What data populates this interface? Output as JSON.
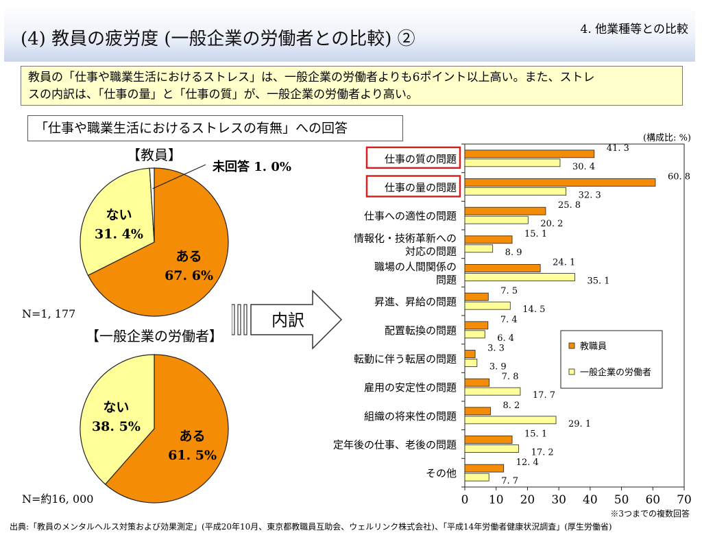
{
  "header": {
    "title": "(4) 教員の疲労度 (一般企業の労働者との比較) ②",
    "section": "4. 他業種等との比較"
  },
  "summary": {
    "line1": "教員の「仕事や職業生活におけるストレス」は、一般企業の労働者よりも6ポイント以上高い。また、ストレ",
    "line2": "スの内訳は、「仕事の量」と「仕事の質」が、一般企業の労働者より高い。"
  },
  "question_label": "「仕事や職業生活におけるストレスの有無」への回答",
  "unit_label": "(構成比: %)",
  "arrow_label": "内訳",
  "footnote": "※3つまでの複数回答",
  "source": "出典:「教員のメンタルヘルス対策および効果測定」(平成20年10月、東京都教職員互助会、ウェルリンク株式会社)、「平成14年労働者健康状況調査」(厚生労働省)",
  "colors": {
    "teacher": "#f48c06",
    "worker": "#ffff99",
    "highlight": "#d62020"
  },
  "chart_data": [
    {
      "type": "pie",
      "title": "【教員】",
      "n_label": "N=1, 177",
      "slices": [
        {
          "label": "ある",
          "value": 67.6,
          "text": "67. 6%",
          "color": "#f48c06"
        },
        {
          "label": "ない",
          "value": 31.4,
          "text": "31. 4%",
          "color": "#ffff99"
        },
        {
          "label": "未回答",
          "value": 1.0,
          "text": "1. 0%",
          "color": "#ffffff"
        }
      ]
    },
    {
      "type": "pie",
      "title": "【一般企業の労働者】",
      "n_label": "N=約16, 000",
      "slices": [
        {
          "label": "ある",
          "value": 61.5,
          "text": "61. 5%",
          "color": "#f48c06"
        },
        {
          "label": "ない",
          "value": 38.5,
          "text": "38. 5%",
          "color": "#ffff99"
        }
      ]
    },
    {
      "type": "bar",
      "orientation": "horizontal",
      "xlim": [
        0,
        70
      ],
      "xticks": [
        "0",
        "10",
        "20",
        "30",
        "40",
        "50",
        "60",
        "70"
      ],
      "legend_position": "right",
      "categories": [
        [
          "仕事の質の問題"
        ],
        [
          "仕事の量の問題"
        ],
        [
          "仕事への適性の問題"
        ],
        [
          "情報化・技術革新への",
          "対応の問題"
        ],
        [
          "職場の人間関係の",
          "問題"
        ],
        [
          "昇進、昇給の問題"
        ],
        [
          "配置転換の問題"
        ],
        [
          "転勤に伴う転居の問題"
        ],
        [
          "雇用の安定性の問題"
        ],
        [
          "組織の将来性の問題"
        ],
        [
          "定年後の仕事、老後の問題"
        ],
        [
          "その他"
        ]
      ],
      "highlighted": [
        0,
        1
      ],
      "series": [
        {
          "name": "教職員",
          "values": [
            41.3,
            60.8,
            25.8,
            15.1,
            24.1,
            7.5,
            7.4,
            3.3,
            7.8,
            8.2,
            15.1,
            12.4
          ],
          "labels": [
            "41. 3",
            "60. 8",
            "25. 8",
            "15. 1",
            "24. 1",
            "7. 5",
            "7. 4",
            "3. 3",
            "7. 8",
            "8. 2",
            "15. 1",
            "12. 4"
          ]
        },
        {
          "name": "一般企業の労働者",
          "values": [
            30.4,
            32.3,
            20.2,
            8.9,
            35.1,
            14.5,
            6.4,
            3.9,
            17.7,
            29.1,
            17.2,
            7.7
          ],
          "labels": [
            "30. 4",
            "32. 3",
            "20. 2",
            "8. 9",
            "35. 1",
            "14. 5",
            "6. 4",
            "3. 9",
            "17. 7",
            "29. 1",
            "17. 2",
            "7. 7"
          ]
        }
      ]
    }
  ]
}
